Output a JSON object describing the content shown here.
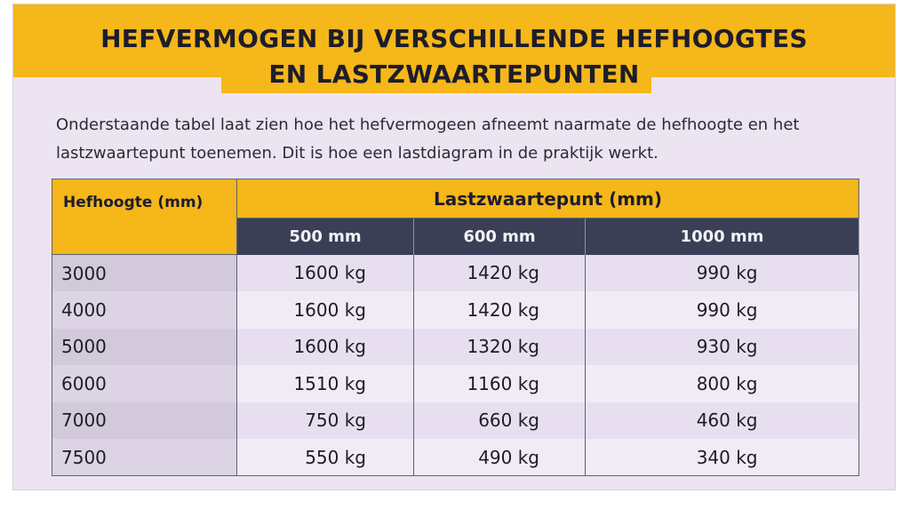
{
  "title": {
    "line1": "HEFVERMOGEN BIJ VERSCHILLENDE HEFHOOGTES",
    "line2": "EN LASTZWAARTEPUNTEN"
  },
  "intro": {
    "line1": "Onderstaande tabel laat zien hoe het hefvermogeen afneemt naarmate de hefhoogte en het",
    "line2": "lastzwaartepunt toenemen. Dit is hoe een lastdiagram in de praktijk werkt."
  },
  "colors": {
    "accent_yellow": "#f5b719",
    "header_dark": "#3b3f55",
    "page_bg": "#ece4f0"
  },
  "table": {
    "header_hefhoogte": "Hefhoogte (mm)",
    "header_lastzwaartepunt": "Lastzwaartepunt (mm)",
    "columns": [
      "500 mm",
      "600 mm",
      "1000 mm"
    ],
    "rows": [
      {
        "height": "3000",
        "values": [
          "1600 kg",
          "1420 kg",
          "990 kg"
        ]
      },
      {
        "height": "4000",
        "values": [
          "1600 kg",
          "1420 kg",
          "990 kg"
        ]
      },
      {
        "height": "5000",
        "values": [
          "1600 kg",
          "1320 kg",
          "930 kg"
        ]
      },
      {
        "height": "6000",
        "values": [
          "1510 kg",
          "1160 kg",
          "800 kg"
        ]
      },
      {
        "height": "7000",
        "values": [
          "750 kg",
          "660 kg",
          "460 kg"
        ]
      },
      {
        "height": "7500",
        "values": [
          "550 kg",
          "490 kg",
          "340 kg"
        ]
      }
    ]
  }
}
